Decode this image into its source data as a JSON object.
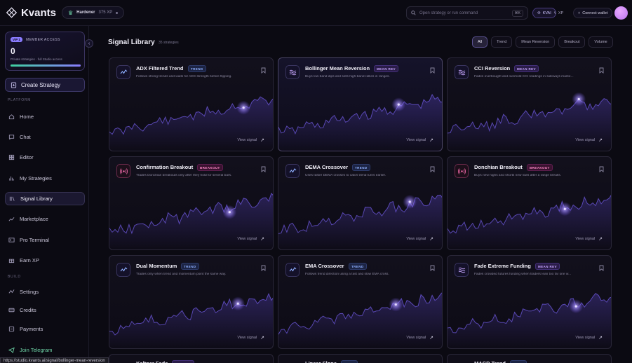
{
  "app": {
    "name": "Kvants"
  },
  "topbar": {
    "rank_name": "Hardener",
    "rank_xp": "375 XP",
    "search_placeholder": "Open strategy or run command",
    "search_shortcut": "⌘K",
    "kvai_label": "KVAI",
    "xp_label": "XP",
    "wallet_label": "Connect wallet"
  },
  "member": {
    "badge": "VIP 1",
    "label": "MEMBER ACCESS",
    "value": "0",
    "description": "Private strategies · full Studio access",
    "progress": 1.0
  },
  "sidebar": {
    "create_label": "Create Strategy",
    "section_platform": "PLATFORM",
    "section_build": "BUILD",
    "platform_items": [
      {
        "label": "Home",
        "icon": "home-icon"
      },
      {
        "label": "Chat",
        "icon": "chat-icon"
      },
      {
        "label": "Editor",
        "icon": "editor-icon"
      },
      {
        "label": "My Strategies",
        "icon": "strategies-icon"
      },
      {
        "label": "Signal Library",
        "icon": "library-icon",
        "active": true
      },
      {
        "label": "Marketplace",
        "icon": "marketplace-icon"
      },
      {
        "label": "Pro Terminal",
        "icon": "terminal-icon"
      },
      {
        "label": "Earn XP",
        "icon": "gift-icon"
      }
    ],
    "build_items": [
      {
        "label": "Settings",
        "icon": "settings-icon"
      },
      {
        "label": "Credits",
        "icon": "credits-icon"
      },
      {
        "label": "Payments",
        "icon": "payments-icon"
      }
    ],
    "join_label": "Join Telegram"
  },
  "statusbar": {
    "url": "https://studio.kvants.ai/signal/bollinger-mean-reversion"
  },
  "library": {
    "title": "Signal Library",
    "count": "35 strategies",
    "filters": [
      {
        "label": "All",
        "active": true
      },
      {
        "label": "Trend"
      },
      {
        "label": "Mean Reversion"
      },
      {
        "label": "Breakout"
      },
      {
        "label": "Volume"
      }
    ],
    "view_label": "View signal",
    "cards": [
      {
        "title": "ADX Filtered Trend",
        "tag": "TREND",
        "kind": "trend",
        "desc": "Follows strong trends and waits for ADX strength before flipping."
      },
      {
        "title": "Bollinger Mean Reversion",
        "tag": "MEAN REV",
        "kind": "mean",
        "desc": "Buys low-band dips and sells high-band rallies in ranges."
      },
      {
        "title": "CCI Reversion",
        "tag": "MEAN REV",
        "kind": "mean",
        "desc": "Fades overbought and oversold CCI readings in sideways marke..."
      },
      {
        "title": "Confirmation Breakout",
        "tag": "BREAKOUT",
        "kind": "break",
        "desc": "Trades Donchian breakouts only after they hold for several bars."
      },
      {
        "title": "DEMA Crossover",
        "tag": "TREND",
        "kind": "trend",
        "desc": "Uses faster DEMA crosses to catch trend turns earlier."
      },
      {
        "title": "Donchian Breakout",
        "tag": "BREAKOUT",
        "kind": "break",
        "desc": "Buys new highs and shorts new lows after a range breaks."
      },
      {
        "title": "Dual Momentum",
        "tag": "TREND",
        "kind": "trend",
        "desc": "Trades only when trend and momentum point the same way."
      },
      {
        "title": "EMA Crossover",
        "tag": "TREND",
        "kind": "trend",
        "desc": "Follows trend direction using a fast and slow EMA cross."
      },
      {
        "title": "Fade Extreme Funding",
        "tag": "MEAN REV",
        "kind": "mean",
        "desc": "Fades crowded futures funding when traders lean too far one w..."
      }
    ],
    "partial_cards": [
      {
        "title": "Keltner Fade",
        "tag": "MEAN REV",
        "kind": "mean"
      },
      {
        "title": "Linear Slope",
        "tag": "TREND",
        "kind": "trend"
      },
      {
        "title": "MACD Trend",
        "tag": "TREND",
        "kind": "trend"
      }
    ]
  }
}
